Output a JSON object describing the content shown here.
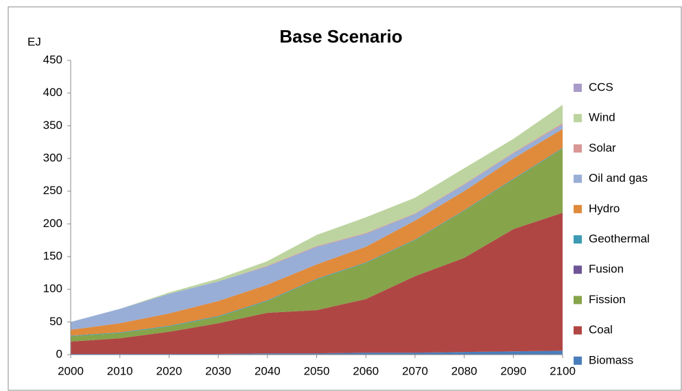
{
  "chart_data": {
    "type": "stacked_area",
    "title": "Base Scenario",
    "y_label": "EJ",
    "x": [
      2000,
      2010,
      2020,
      2030,
      2040,
      2050,
      2060,
      2070,
      2080,
      2090,
      2100
    ],
    "xlim": [
      2000,
      2100
    ],
    "xticks": [
      2000,
      2010,
      2020,
      2030,
      2040,
      2050,
      2060,
      2070,
      2080,
      2090,
      2100
    ],
    "ylim": [
      0,
      450
    ],
    "yticks": [
      0,
      50,
      100,
      150,
      200,
      250,
      300,
      350,
      400,
      450
    ],
    "legend": "right",
    "series": [
      {
        "name": "Biomass",
        "color": "#4a7ebb",
        "values": [
          1,
          1,
          1,
          1,
          2,
          2,
          3,
          3,
          4,
          5,
          6
        ]
      },
      {
        "name": "Coal",
        "color": "#b04644",
        "values": [
          19,
          24,
          34,
          47,
          62,
          66,
          82,
          117,
          144,
          187,
          211
        ]
      },
      {
        "name": "Fission",
        "color": "#86a44a",
        "values": [
          8,
          8,
          8,
          10,
          18,
          47,
          55,
          55,
          72,
          76,
          98
        ]
      },
      {
        "name": "Fusion",
        "color": "#6f5597",
        "values": [
          0,
          0,
          0,
          0,
          0,
          0,
          0,
          0,
          0,
          0,
          0
        ]
      },
      {
        "name": "Geothermal",
        "color": "#3c9bb3",
        "values": [
          1,
          1,
          1,
          1,
          1,
          1,
          1,
          1,
          1,
          1,
          1
        ]
      },
      {
        "name": "Hydro",
        "color": "#e08a3c",
        "values": [
          9,
          14,
          19,
          23,
          24,
          22,
          24,
          29,
          29,
          31,
          29
        ]
      },
      {
        "name": "Oil and gas",
        "color": "#98aed6",
        "values": [
          12,
          22,
          30,
          30,
          28,
          27,
          20,
          10,
          10,
          8,
          7
        ]
      },
      {
        "name": "Solar",
        "color": "#d99694",
        "values": [
          0,
          0,
          0,
          0,
          1,
          1,
          1,
          1,
          1,
          1,
          2
        ]
      },
      {
        "name": "Wind",
        "color": "#bdd4a0",
        "values": [
          0,
          0,
          2,
          4,
          7,
          17,
          24,
          24,
          24,
          21,
          28
        ]
      },
      {
        "name": "CCS",
        "color": "#a99bc8",
        "values": [
          0,
          0,
          0,
          0,
          0,
          0,
          0,
          0,
          0,
          0,
          0
        ]
      }
    ]
  }
}
